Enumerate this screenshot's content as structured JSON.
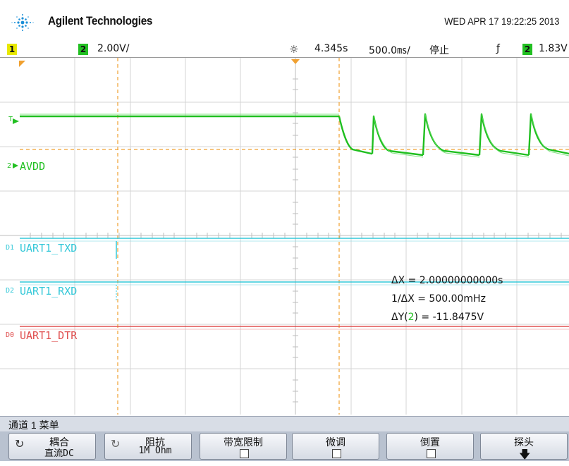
{
  "header": {
    "brand": "Agilent Technologies",
    "datetime": "WED APR 17 19:22:25 2013"
  },
  "status": {
    "ch1_badge": "1",
    "ch2_badge": "2",
    "ch2_scale": "2.00V/",
    "trigger_delay": "4.345s",
    "timebase": "500.0㎳/",
    "run_state": "停止",
    "trigger_edge": "ƒ",
    "trigger_source_badge": "2",
    "trigger_level": "1.83V"
  },
  "waveform": {
    "trigger_marker": "T",
    "ch2_marker": "2",
    "ch2_label": "AVDD",
    "digital": [
      {
        "index": "D1",
        "name": "UART1_TXD"
      },
      {
        "index": "D2",
        "name": "UART1_RXD"
      },
      {
        "index": "D0",
        "name": "UART1_DTR"
      }
    ]
  },
  "cursors": {
    "delta_x": "ΔX = 2.00000000000s",
    "inv_delta_x": "1/ΔX = 500.00mHz",
    "delta_y_prefix": "ΔY(",
    "delta_y_channel": "2",
    "delta_y_suffix": ") = -11.8475V"
  },
  "menu": {
    "title": "通道 1  菜单",
    "softkeys": [
      {
        "label": "耦合",
        "value": "直流DC"
      },
      {
        "label": "阻抗",
        "value": "1M Ohm"
      },
      {
        "label": "带宽限制"
      },
      {
        "label": "微调"
      },
      {
        "label": "倒置"
      },
      {
        "label": "探头"
      }
    ]
  },
  "colors": {
    "ch1": "#e8e800",
    "ch2": "#22c022",
    "digital_cyan": "#33c8d8",
    "digital_red": "#e05050",
    "cursor_orange": "#f0a030"
  }
}
